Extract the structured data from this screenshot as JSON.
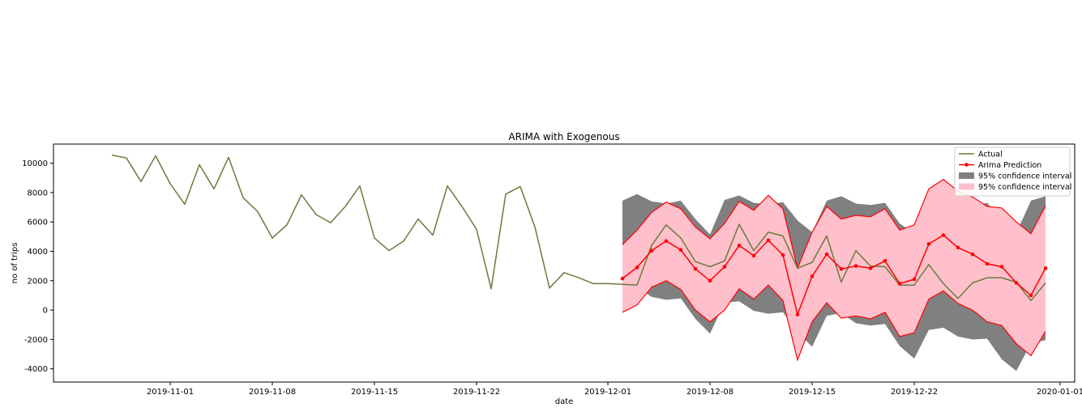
{
  "chart_data": {
    "type": "line",
    "title": "ARIMA with Exogenous",
    "xlabel": "date",
    "ylabel": "no of trips",
    "xlim": [
      "2019-10-24",
      "2020-01-02"
    ],
    "ylim": [
      -4900,
      11300
    ],
    "x_ticks": [
      "2019-11-01",
      "2019-11-08",
      "2019-11-15",
      "2019-11-22",
      "2019-12-01",
      "2019-12-08",
      "2019-12-15",
      "2019-12-22",
      "2020-01-01"
    ],
    "y_ticks": [
      -4000,
      -2000,
      0,
      2000,
      4000,
      6000,
      8000,
      10000
    ],
    "grid": false,
    "legend_position": "top-right",
    "legend": [
      {
        "label": "Actual",
        "kind": "line",
        "color": "#6b7a3c"
      },
      {
        "label": "Arima Prediction",
        "kind": "line-marker",
        "color": "#ff0000"
      },
      {
        "label": "95% confidence interval",
        "kind": "patch",
        "color": "#808080"
      },
      {
        "label": "95% confidence interval",
        "kind": "patch",
        "color": "#ffc0cb"
      }
    ],
    "series": [
      {
        "name": "Actual",
        "color": "#6b7a3c",
        "x": [
          "2019-10-28",
          "2019-10-29",
          "2019-10-30",
          "2019-10-31",
          "2019-11-01",
          "2019-11-02",
          "2019-11-03",
          "2019-11-04",
          "2019-11-05",
          "2019-11-06",
          "2019-11-07",
          "2019-11-08",
          "2019-11-09",
          "2019-11-10",
          "2019-11-11",
          "2019-11-12",
          "2019-11-13",
          "2019-11-14",
          "2019-11-15",
          "2019-11-16",
          "2019-11-17",
          "2019-11-18",
          "2019-11-19",
          "2019-11-20",
          "2019-11-21",
          "2019-11-22",
          "2019-11-23",
          "2019-11-24",
          "2019-11-25",
          "2019-11-26",
          "2019-11-27",
          "2019-11-28",
          "2019-11-29",
          "2019-11-30",
          "2019-12-01",
          "2019-12-02",
          "2019-12-03"
        ],
        "y": [
          10550,
          10350,
          8750,
          10500,
          8600,
          7200,
          9900,
          8250,
          10400,
          7650,
          6700,
          4900,
          5800,
          7850,
          6500,
          5950,
          7050,
          8450,
          4900,
          4050,
          4700,
          6200,
          5100,
          8450,
          7050,
          5500,
          1450,
          7900,
          8400,
          5650,
          1500,
          2550,
          2200,
          1800,
          1800,
          1750,
          1700
        ]
      },
      {
        "name": "Actual",
        "color": "#6b7a3c",
        "x": [
          "2019-12-03",
          "2019-12-04",
          "2019-12-05",
          "2019-12-06",
          "2019-12-07",
          "2019-12-08",
          "2019-12-09",
          "2019-12-10",
          "2019-12-11",
          "2019-12-12",
          "2019-12-13",
          "2019-12-14",
          "2019-12-15",
          "2019-12-16",
          "2019-12-17",
          "2019-12-18",
          "2019-12-19",
          "2019-12-20",
          "2019-12-21",
          "2019-12-22",
          "2019-12-23",
          "2019-12-24",
          "2019-12-25",
          "2019-12-26",
          "2019-12-27",
          "2019-12-28",
          "2019-12-29",
          "2019-12-30",
          "2019-12-31"
        ],
        "y": [
          1700,
          4400,
          5800,
          4900,
          3300,
          2950,
          3350,
          5850,
          4050,
          5300,
          5050,
          2850,
          3250,
          5050,
          1900,
          4050,
          3000,
          2950,
          1700,
          1700,
          3100,
          1800,
          800,
          1850,
          2200,
          2200,
          1900,
          650,
          1850
        ]
      },
      {
        "name": "Arima Prediction",
        "color": "#ff0000",
        "x": [
          "2019-12-02",
          "2019-12-03",
          "2019-12-04",
          "2019-12-05",
          "2019-12-06",
          "2019-12-07",
          "2019-12-08",
          "2019-12-09",
          "2019-12-10",
          "2019-12-11",
          "2019-12-12",
          "2019-12-13",
          "2019-12-14",
          "2019-12-15",
          "2019-12-16",
          "2019-12-17",
          "2019-12-18",
          "2019-12-19",
          "2019-12-20",
          "2019-12-21",
          "2019-12-22",
          "2019-12-23",
          "2019-12-24",
          "2019-12-25",
          "2019-12-26",
          "2019-12-27",
          "2019-12-28",
          "2019-12-29",
          "2019-12-30",
          "2019-12-31"
        ],
        "y": [
          2150,
          2900,
          4050,
          4700,
          4100,
          2800,
          2000,
          2950,
          4400,
          3700,
          4750,
          3750,
          -300,
          2300,
          3800,
          2800,
          3000,
          2850,
          3350,
          1800,
          2100,
          4500,
          5100,
          4250,
          3800,
          3150,
          2950,
          1850,
          1000,
          2850
        ]
      }
    ],
    "bands": [
      {
        "name": "95% confidence interval",
        "color": "#808080",
        "x": [
          "2019-12-02",
          "2019-12-03",
          "2019-12-04",
          "2019-12-05",
          "2019-12-06",
          "2019-12-07",
          "2019-12-08",
          "2019-12-09",
          "2019-12-10",
          "2019-12-11",
          "2019-12-12",
          "2019-12-13",
          "2019-12-14",
          "2019-12-15",
          "2019-12-16",
          "2019-12-17",
          "2019-12-18",
          "2019-12-19",
          "2019-12-20",
          "2019-12-21",
          "2019-12-22",
          "2019-12-23",
          "2019-12-24",
          "2019-12-25",
          "2019-12-26",
          "2019-12-27",
          "2019-12-28",
          "2019-12-29",
          "2019-12-30",
          "2019-12-31"
        ],
        "upper": [
          7450,
          7900,
          7400,
          7250,
          7450,
          6200,
          5150,
          7500,
          7800,
          7300,
          7200,
          7350,
          6100,
          5300,
          7450,
          7750,
          7250,
          7150,
          7300,
          5900,
          5200,
          7400,
          7700,
          7200,
          7100,
          7300,
          6150,
          5250,
          7450,
          7750
        ],
        "lower": [
          1400,
          1550,
          900,
          700,
          800,
          -600,
          -1600,
          500,
          600,
          -50,
          -250,
          -150,
          -1500,
          -2500,
          -400,
          -200,
          -900,
          -1050,
          -950,
          -2450,
          -3300,
          -1350,
          -1200,
          -1800,
          -2000,
          -1950,
          -3350,
          -4150,
          -2250,
          -2050
        ]
      },
      {
        "name": "95% confidence interval",
        "color": "#ffc0cb",
        "x": [
          "2019-12-02",
          "2019-12-03",
          "2019-12-04",
          "2019-12-05",
          "2019-12-06",
          "2019-12-07",
          "2019-12-08",
          "2019-12-09",
          "2019-12-10",
          "2019-12-11",
          "2019-12-12",
          "2019-12-13",
          "2019-12-14",
          "2019-12-15",
          "2019-12-16",
          "2019-12-17",
          "2019-12-18",
          "2019-12-19",
          "2019-12-20",
          "2019-12-21",
          "2019-12-22",
          "2019-12-23",
          "2019-12-24",
          "2019-12-25",
          "2019-12-26",
          "2019-12-27",
          "2019-12-28",
          "2019-12-29",
          "2019-12-30",
          "2019-12-31"
        ],
        "upper": [
          4450,
          5450,
          6650,
          7350,
          6900,
          5650,
          4850,
          5900,
          7400,
          6800,
          7800,
          6900,
          2850,
          5300,
          7050,
          6200,
          6450,
          6350,
          6900,
          5450,
          5800,
          8250,
          8900,
          8100,
          7700,
          7050,
          6950,
          6000,
          5200,
          7100
        ],
        "lower": [
          -150,
          350,
          1550,
          2000,
          1400,
          0,
          -800,
          0,
          1450,
          750,
          1700,
          650,
          -3400,
          -800,
          500,
          -550,
          -400,
          -600,
          -150,
          -1800,
          -1550,
          750,
          1300,
          450,
          0,
          -800,
          -1050,
          -2300,
          -3100,
          -1450
        ]
      }
    ]
  }
}
